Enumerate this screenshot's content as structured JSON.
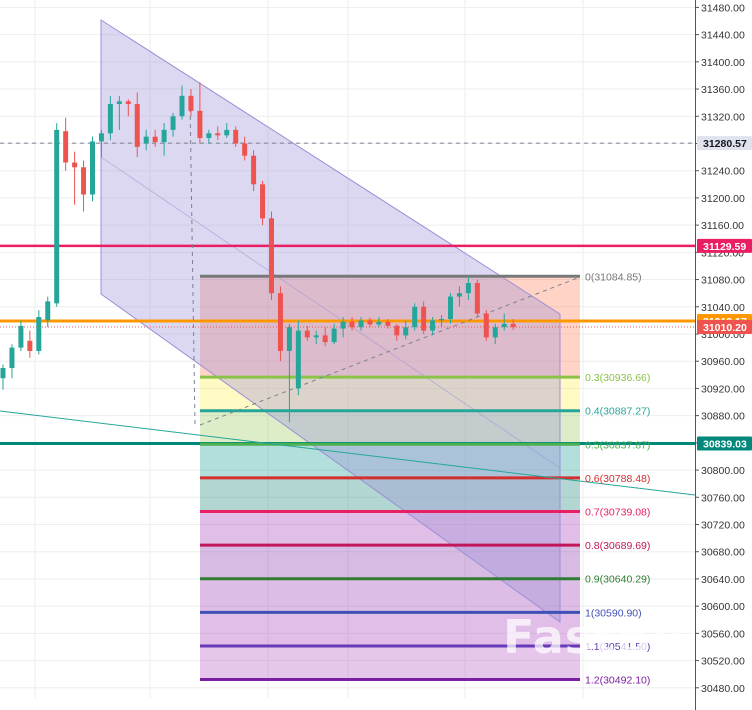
{
  "watermark": "FastBull",
  "colors": {
    "bull": "#26a69a",
    "bear": "#ef5350",
    "channel": "#9c8fd6",
    "grid": "#eeeeee"
  },
  "chart_data": {
    "type": "candlestick",
    "ylim": [
      30465,
      31485
    ],
    "grid": true,
    "price_axis_ticks": [
      "31480.00",
      "31440.00",
      "31400.00",
      "31360.00",
      "31320.00",
      "31280.00",
      "31240.00",
      "31200.00",
      "31160.00",
      "31120.00",
      "31080.00",
      "31040.00",
      "31000.00",
      "30960.00",
      "30920.00",
      "30880.00",
      "30840.00",
      "30800.00",
      "30760.00",
      "30720.00",
      "30680.00",
      "30640.00",
      "30600.00",
      "30560.00",
      "30520.00",
      "30480.00"
    ],
    "candles": [
      {
        "o": 30935,
        "h": 30955,
        "l": 30918,
        "c": 30950
      },
      {
        "o": 30950,
        "h": 30985,
        "l": 30935,
        "c": 30980
      },
      {
        "o": 30980,
        "h": 31020,
        "l": 30975,
        "c": 31012
      },
      {
        "o": 30990,
        "h": 31005,
        "l": 30965,
        "c": 30975
      },
      {
        "o": 30975,
        "h": 31035,
        "l": 30970,
        "c": 31025
      },
      {
        "o": 31020,
        "h": 31055,
        "l": 31010,
        "c": 31048
      },
      {
        "o": 31045,
        "h": 31310,
        "l": 31040,
        "c": 31300
      },
      {
        "o": 31298,
        "h": 31318,
        "l": 31240,
        "c": 31252
      },
      {
        "o": 31252,
        "h": 31268,
        "l": 31190,
        "c": 31245
      },
      {
        "o": 31245,
        "h": 31255,
        "l": 31180,
        "c": 31205
      },
      {
        "o": 31205,
        "h": 31290,
        "l": 31195,
        "c": 31283
      },
      {
        "o": 31283,
        "h": 31300,
        "l": 31260,
        "c": 31295
      },
      {
        "o": 31295,
        "h": 31350,
        "l": 31285,
        "c": 31338
      },
      {
        "o": 31338,
        "h": 31350,
        "l": 31300,
        "c": 31342
      },
      {
        "o": 31342,
        "h": 31345,
        "l": 31320,
        "c": 31338
      },
      {
        "o": 31338,
        "h": 31355,
        "l": 31260,
        "c": 31275
      },
      {
        "o": 31280,
        "h": 31300,
        "l": 31270,
        "c": 31290
      },
      {
        "o": 31290,
        "h": 31300,
        "l": 31275,
        "c": 31282
      },
      {
        "o": 31282,
        "h": 31310,
        "l": 31262,
        "c": 31300
      },
      {
        "o": 31300,
        "h": 31325,
        "l": 31290,
        "c": 31320
      },
      {
        "o": 31320,
        "h": 31365,
        "l": 31315,
        "c": 31350
      },
      {
        "o": 31350,
        "h": 31360,
        "l": 31320,
        "c": 31328
      },
      {
        "o": 31328,
        "h": 31370,
        "l": 31280,
        "c": 31288
      },
      {
        "o": 31288,
        "h": 31300,
        "l": 31280,
        "c": 31295
      },
      {
        "o": 31295,
        "h": 31305,
        "l": 31285,
        "c": 31292
      },
      {
        "o": 31292,
        "h": 31310,
        "l": 31288,
        "c": 31300
      },
      {
        "o": 31300,
        "h": 31305,
        "l": 31275,
        "c": 31280
      },
      {
        "o": 31280,
        "h": 31290,
        "l": 31255,
        "c": 31262
      },
      {
        "o": 31262,
        "h": 31270,
        "l": 31210,
        "c": 31220
      },
      {
        "o": 31220,
        "h": 31225,
        "l": 31160,
        "c": 31170
      },
      {
        "o": 31170,
        "h": 31180,
        "l": 31050,
        "c": 31060
      },
      {
        "o": 31060,
        "h": 31070,
        "l": 30960,
        "c": 30975
      },
      {
        "o": 30975,
        "h": 31015,
        "l": 30870,
        "c": 31010
      },
      {
        "o": 30920,
        "h": 31020,
        "l": 30910,
        "c": 31005
      },
      {
        "o": 31005,
        "h": 31012,
        "l": 30990,
        "c": 30995
      },
      {
        "o": 30995,
        "h": 31005,
        "l": 30985,
        "c": 30998
      },
      {
        "o": 30998,
        "h": 31010,
        "l": 30982,
        "c": 30988
      },
      {
        "o": 30988,
        "h": 31015,
        "l": 30985,
        "c": 31008
      },
      {
        "o": 31008,
        "h": 31025,
        "l": 30995,
        "c": 31018
      },
      {
        "o": 31018,
        "h": 31025,
        "l": 31005,
        "c": 31010
      },
      {
        "o": 31010,
        "h": 31025,
        "l": 31005,
        "c": 31020
      },
      {
        "o": 31020,
        "h": 31024,
        "l": 31010,
        "c": 31014
      },
      {
        "o": 31014,
        "h": 31025,
        "l": 31010,
        "c": 31018
      },
      {
        "o": 31018,
        "h": 31022,
        "l": 31008,
        "c": 31012
      },
      {
        "o": 31012,
        "h": 31015,
        "l": 30990,
        "c": 30998
      },
      {
        "o": 30998,
        "h": 31020,
        "l": 30992,
        "c": 31010
      },
      {
        "o": 31010,
        "h": 31045,
        "l": 31005,
        "c": 31040
      },
      {
        "o": 31040,
        "h": 31048,
        "l": 31000,
        "c": 31005
      },
      {
        "o": 31005,
        "h": 31025,
        "l": 30998,
        "c": 31020
      },
      {
        "o": 31020,
        "h": 31028,
        "l": 31010,
        "c": 31022
      },
      {
        "o": 31022,
        "h": 31060,
        "l": 31015,
        "c": 31055
      },
      {
        "o": 31055,
        "h": 31070,
        "l": 31040,
        "c": 31060
      },
      {
        "o": 31060,
        "h": 31085,
        "l": 31050,
        "c": 31075
      },
      {
        "o": 31075,
        "h": 31080,
        "l": 31025,
        "c": 31030
      },
      {
        "o": 31030,
        "h": 31035,
        "l": 30990,
        "c": 30995
      },
      {
        "o": 30995,
        "h": 31015,
        "l": 30985,
        "c": 31010
      },
      {
        "o": 31010,
        "h": 31030,
        "l": 31005,
        "c": 31015
      },
      {
        "o": 31015,
        "h": 31022,
        "l": 31006,
        "c": 31010
      }
    ],
    "price_tags": [
      {
        "value": "31280.57",
        "price": 31280.57,
        "color": "#e0e3eb",
        "text_color": "#131722"
      },
      {
        "value": "31129.59",
        "price": 31129.59,
        "color": "#e91e63",
        "text_color": "#ffffff"
      },
      {
        "value": "31019.17",
        "price": 31019.17,
        "color": "#ff9800",
        "text_color": "#ffffff"
      },
      {
        "value": "31010.20",
        "price": 31010.2,
        "color": "#ef5350",
        "text_color": "#ffffff"
      },
      {
        "value": "30839.03",
        "price": 30839.03,
        "color": "#00897b",
        "text_color": "#ffffff"
      }
    ],
    "fibonacci": [
      {
        "label": "0(31084.85)",
        "price": 31084.85,
        "color": "#787878"
      },
      {
        "label": "0.3(30936.66)",
        "price": 30936.66,
        "color": "#8bc34a"
      },
      {
        "label": "0.4(30887.27)",
        "price": 30887.27,
        "color": "#26a69a"
      },
      {
        "label": "0.5(30837.87)",
        "price": 30837.87,
        "color": "#4caf50"
      },
      {
        "label": "0.6(30788.48)",
        "price": 30788.48,
        "color": "#d32f2f"
      },
      {
        "label": "0.7(30739.08)",
        "price": 30739.08,
        "color": "#e91e63"
      },
      {
        "label": "0.8(30689.69)",
        "price": 30689.69,
        "color": "#c2185b"
      },
      {
        "label": "0.9(30640.29)",
        "price": 30640.29,
        "color": "#2e7d32"
      },
      {
        "label": "1(30590.90)",
        "price": 30590.9,
        "color": "#3f51b5"
      },
      {
        "label": "1.1(30541.50)",
        "price": 30541.5,
        "color": "#673ab7"
      },
      {
        "label": "1.2(30492.10)",
        "price": 30492.1,
        "color": "#7b1fa2"
      }
    ],
    "fib_zone_fills": [
      "#ff7043",
      "#ffeb3b",
      "#8bc34a",
      "#009688",
      "#00796b",
      "#9c27b0",
      "#7b1fa2",
      "#8e24aa",
      "#9c27b0",
      "#ab47bc",
      "#ba68c8"
    ]
  }
}
